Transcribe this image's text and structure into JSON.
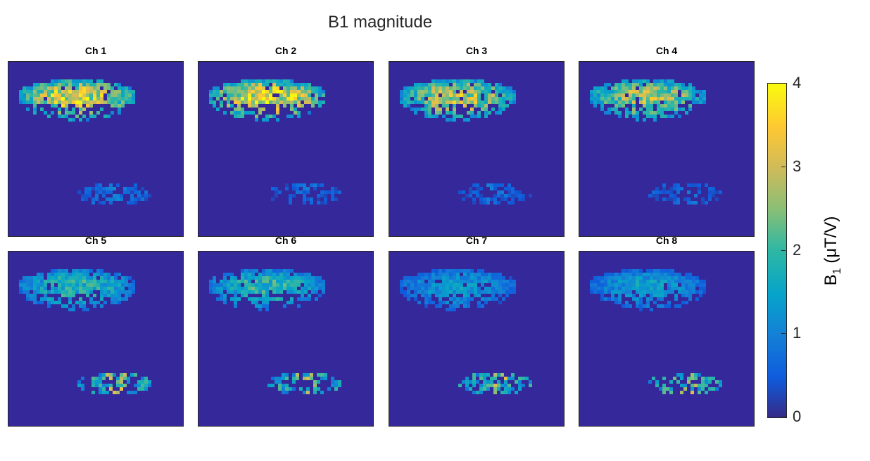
{
  "chart_data": {
    "type": "heatmap",
    "title": "B1 magnitude",
    "panels": [
      {
        "title": "Ch 1",
        "top_intensity": 3.8,
        "bottom_intensity": 1.0
      },
      {
        "title": "Ch 2",
        "top_intensity": 4.0,
        "bottom_intensity": 0.8
      },
      {
        "title": "Ch 3",
        "top_intensity": 3.4,
        "bottom_intensity": 0.8
      },
      {
        "title": "Ch 4",
        "top_intensity": 3.2,
        "bottom_intensity": 0.8
      },
      {
        "title": "Ch 5",
        "top_intensity": 2.2,
        "bottom_intensity": 2.6
      },
      {
        "title": "Ch 6",
        "top_intensity": 2.2,
        "bottom_intensity": 2.6
      },
      {
        "title": "Ch 7",
        "top_intensity": 1.6,
        "bottom_intensity": 2.6
      },
      {
        "title": "Ch 8",
        "top_intensity": 1.6,
        "bottom_intensity": 2.8
      }
    ],
    "colorbar": {
      "label_main": "B",
      "label_sub": "1",
      "label_rest": " (μT/V)",
      "ticks": [
        "0",
        "1",
        "2",
        "3",
        "4"
      ],
      "range": [
        0,
        4
      ],
      "colormap": "parula"
    }
  }
}
